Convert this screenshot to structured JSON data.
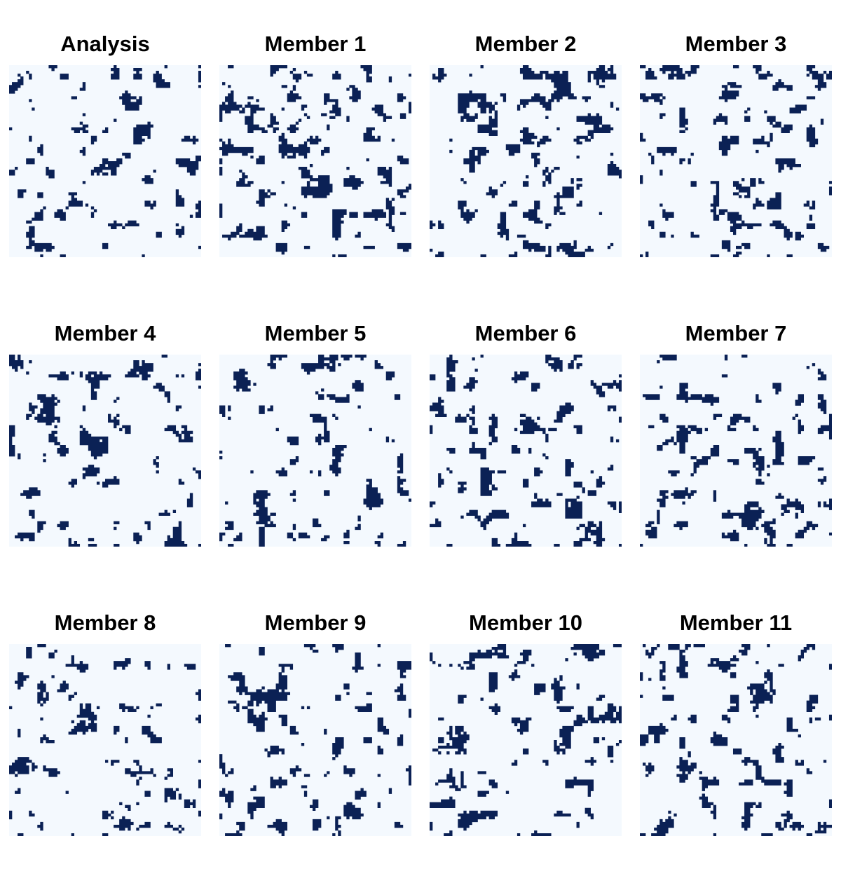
{
  "colors": {
    "background": "#f4f9fe",
    "blob": "#0b2155",
    "title": "#000000"
  },
  "panels": [
    {
      "title": "Analysis",
      "seed": 11
    },
    {
      "title": "Member 1",
      "seed": 23
    },
    {
      "title": "Member 2",
      "seed": 37
    },
    {
      "title": "Member 3",
      "seed": 41
    },
    {
      "title": "Member 4",
      "seed": 53
    },
    {
      "title": "Member 5",
      "seed": 67
    },
    {
      "title": "Member 6",
      "seed": 79
    },
    {
      "title": "Member 7",
      "seed": 83
    },
    {
      "title": "Member 8",
      "seed": 97
    },
    {
      "title": "Member 9",
      "seed": 101
    },
    {
      "title": "Member 10",
      "seed": 113
    },
    {
      "title": "Member 11",
      "seed": 127
    }
  ]
}
